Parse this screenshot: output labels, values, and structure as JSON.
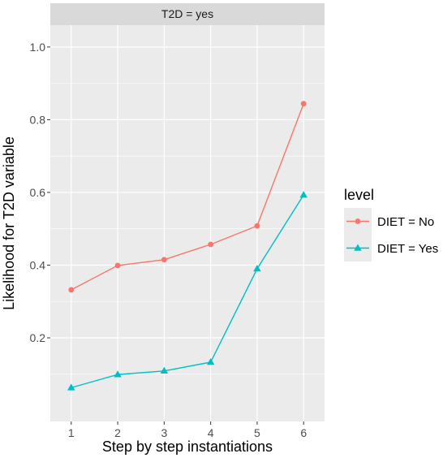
{
  "chart_data": {
    "type": "line",
    "facet_label": "T2D = yes",
    "xlabel": "Step by step instantiations",
    "ylabel": "Likelihood for T2D variable",
    "x": [
      1,
      2,
      3,
      4,
      5,
      6
    ],
    "xticks": [
      "1",
      "2",
      "3",
      "4",
      "5",
      "6"
    ],
    "yticks": [
      0.2,
      0.4,
      0.6,
      0.8,
      1.0
    ],
    "ytick_labels": [
      "0.2",
      "0.4",
      "0.6",
      "0.8",
      "1.0"
    ],
    "xlim": [
      0.55,
      6.45
    ],
    "ylim": [
      -0.03,
      1.06
    ],
    "grid": true,
    "legend": {
      "title": "level",
      "placement": "right"
    },
    "series": [
      {
        "name": "DIET = No",
        "values": [
          0.332,
          0.399,
          0.415,
          0.457,
          0.508,
          0.844
        ],
        "color": "#F8766D",
        "marker": "circle"
      },
      {
        "name": "DIET = Yes",
        "values": [
          0.063,
          0.099,
          0.109,
          0.133,
          0.39,
          0.593
        ],
        "color": "#00BFC4",
        "marker": "triangle"
      }
    ]
  }
}
